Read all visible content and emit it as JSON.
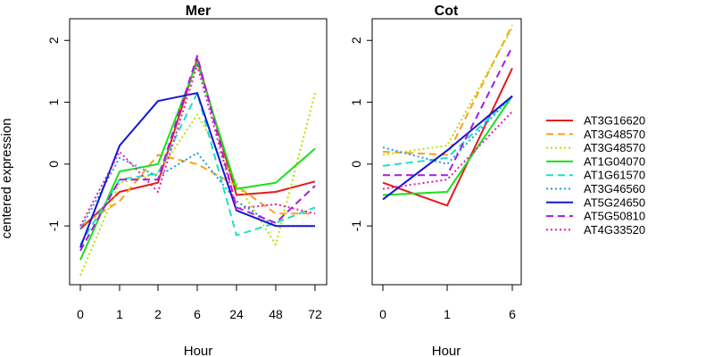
{
  "chart_data": [
    {
      "type": "line",
      "title": "Mer",
      "xlabel": "Hour",
      "ylabel": "centered expression",
      "categories": [
        "0",
        "1",
        "2",
        "6",
        "24",
        "48",
        "72"
      ],
      "ylim": [
        -1.95,
        2.35
      ],
      "yticks": [
        "-1",
        "0",
        "1",
        "2"
      ],
      "series": [
        {
          "name": "AT3G16620",
          "values": [
            -1.05,
            -0.45,
            -0.3,
            1.7,
            -0.5,
            -0.45,
            -0.28
          ]
        },
        {
          "name": "AT3G48570",
          "values": [
            -1.0,
            -0.6,
            0.15,
            0.0,
            -0.35,
            -0.8,
            -0.8
          ]
        },
        {
          "name": "AT3G48570",
          "values": [
            -1.8,
            -0.3,
            -0.15,
            0.8,
            -0.3,
            -1.3,
            1.15
          ]
        },
        {
          "name": "AT1G04070",
          "values": [
            -1.55,
            -0.12,
            0.0,
            1.65,
            -0.4,
            -0.3,
            0.25
          ]
        },
        {
          "name": "AT1G61570",
          "values": [
            -1.3,
            -0.25,
            -0.15,
            1.15,
            -1.15,
            -0.95,
            -0.7
          ]
        },
        {
          "name": "AT3G46560",
          "values": [
            -1.05,
            0.1,
            -0.2,
            0.18,
            -0.6,
            -1.0,
            -1.0
          ]
        },
        {
          "name": "AT5G24650",
          "values": [
            -1.35,
            0.3,
            1.02,
            1.15,
            -0.75,
            -1.0,
            -1.0
          ]
        },
        {
          "name": "AT5G50810",
          "values": [
            -1.4,
            -0.25,
            -0.25,
            1.75,
            -0.7,
            -0.95,
            -0.35
          ]
        },
        {
          "name": "AT4G33520",
          "values": [
            -1.0,
            0.2,
            -0.45,
            1.6,
            -0.72,
            -0.65,
            -0.8
          ]
        }
      ]
    },
    {
      "type": "line",
      "title": "Cot",
      "xlabel": "Hour",
      "ylabel": "",
      "categories": [
        "0",
        "1",
        "6"
      ],
      "ylim": [
        -1.95,
        2.35
      ],
      "yticks": [
        "-1",
        "0",
        "1",
        "2"
      ],
      "series": [
        {
          "name": "AT3G16620",
          "values": [
            -0.3,
            -0.67,
            1.55
          ]
        },
        {
          "name": "AT3G48570",
          "values": [
            0.2,
            0.15,
            2.25
          ]
        },
        {
          "name": "AT3G48570",
          "values": [
            0.15,
            0.3,
            2.2
          ]
        },
        {
          "name": "AT1G04070",
          "values": [
            -0.5,
            -0.45,
            1.1
          ]
        },
        {
          "name": "AT1G61570",
          "values": [
            -0.03,
            0.1,
            1.1
          ]
        },
        {
          "name": "AT3G46560",
          "values": [
            0.27,
            0.0,
            1.1
          ]
        },
        {
          "name": "AT5G24650",
          "values": [
            -0.57,
            0.22,
            1.1
          ]
        },
        {
          "name": "AT5G50810",
          "values": [
            -0.18,
            -0.18,
            1.9
          ]
        },
        {
          "name": "AT4G33520",
          "values": [
            -0.4,
            -0.25,
            0.85
          ]
        }
      ]
    }
  ],
  "legend": {
    "placement": "right",
    "entries": [
      {
        "label": "AT3G16620",
        "color": "#e41a1c",
        "dash": "solid"
      },
      {
        "label": "AT3G48570",
        "color": "#ff9f1c",
        "dash": "dashed"
      },
      {
        "label": "AT3G48570",
        "color": "#b8e000",
        "dash": "dotted"
      },
      {
        "label": "AT1G04070",
        "color": "#1ae01a",
        "dash": "solid"
      },
      {
        "label": "AT1G61570",
        "color": "#1ee0c0",
        "dash": "dashed"
      },
      {
        "label": "AT3G46560",
        "color": "#1a9fe8",
        "dash": "dotted"
      },
      {
        "label": "AT5G24650",
        "color": "#1414d6",
        "dash": "solid"
      },
      {
        "label": "AT5G50810",
        "color": "#a81ae0",
        "dash": "dashed"
      },
      {
        "label": "AT4G33520",
        "color": "#e01ab4",
        "dash": "dotted"
      }
    ]
  }
}
